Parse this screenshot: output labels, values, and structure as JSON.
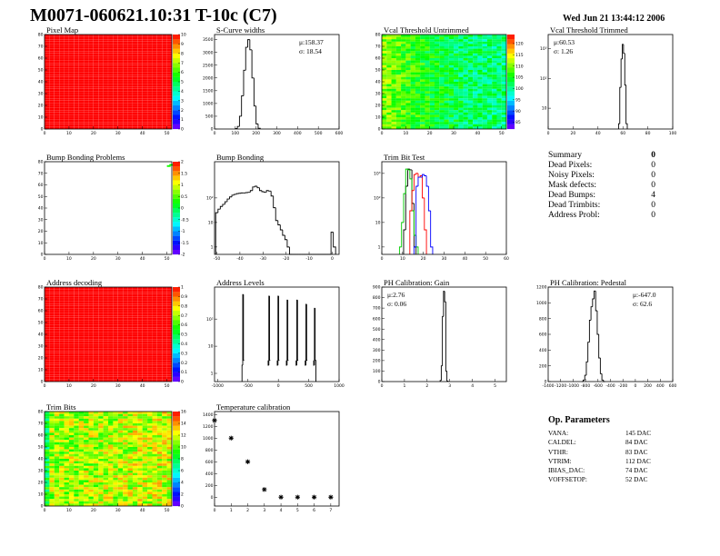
{
  "header": {
    "title": "M0071-060621.10:31 T-10c (C7)",
    "date": "Wed Jun 21 13:44:12 2006"
  },
  "summary": {
    "title": "Summary",
    "total": "0",
    "rows": [
      {
        "label": "Dead Pixels:",
        "value": "0"
      },
      {
        "label": "Noisy Pixels:",
        "value": "0"
      },
      {
        "label": "Mask defects:",
        "value": "0"
      },
      {
        "label": "Dead Bumps:",
        "value": "4"
      },
      {
        "label": "Dead Trimbits:",
        "value": "0"
      },
      {
        "label": "Address Probl:",
        "value": "0"
      }
    ]
  },
  "op_parameters": {
    "title": "Op. Parameters",
    "rows": [
      {
        "label": "VANA:",
        "value": "145 DAC"
      },
      {
        "label": "CALDEL:",
        "value": "84 DAC"
      },
      {
        "label": "VTHR:",
        "value": "83 DAC"
      },
      {
        "label": "VTRIM:",
        "value": "112 DAC"
      },
      {
        "label": "IBIAS_DAC:",
        "value": "74 DAC"
      },
      {
        "label": "VOFFSETOP:",
        "value": "52 DAC"
      }
    ]
  },
  "chart_data": [
    {
      "type": "heatmap",
      "title": "Pixel Map",
      "xlim": [
        0,
        52
      ],
      "ylim": [
        0,
        80
      ],
      "xticks": [
        0,
        10,
        20,
        30,
        40,
        50
      ],
      "yticks": [
        0,
        10,
        20,
        30,
        40,
        50,
        60,
        70,
        80
      ],
      "zlim": [
        0,
        10
      ],
      "zticks": [
        0,
        1,
        2,
        3,
        4,
        5,
        6,
        7,
        8,
        9,
        10
      ],
      "z_uniform": 10
    },
    {
      "type": "histogram",
      "title": "S-Curve widths",
      "xlim": [
        0,
        600
      ],
      "ylim": [
        0,
        3700
      ],
      "xticks": [
        0,
        100,
        200,
        300,
        400,
        500,
        600
      ],
      "yticks": [
        0,
        500,
        1000,
        1500,
        2000,
        2500,
        3000,
        3500
      ],
      "stats": {
        "mean": "μ:158.37",
        "sigma": "σ: 18.54"
      },
      "series": [
        {
          "color": "#000000",
          "bin_width": 10,
          "x": [
            105,
            115,
            125,
            135,
            145,
            155,
            165,
            175,
            185,
            195,
            205,
            215
          ],
          "y": [
            20,
            100,
            500,
            1300,
            2300,
            3200,
            3500,
            3100,
            2000,
            900,
            200,
            30
          ]
        }
      ]
    },
    {
      "type": "heatmap",
      "title": "Vcal Threshold Untrimmed",
      "xlim": [
        0,
        52
      ],
      "ylim": [
        0,
        80
      ],
      "xticks": [
        0,
        10,
        20,
        30,
        40,
        50
      ],
      "yticks": [
        0,
        10,
        20,
        30,
        40,
        50,
        60,
        70,
        80
      ],
      "zlim": [
        82,
        124
      ],
      "zticks": [
        85,
        90,
        95,
        100,
        105,
        110,
        115,
        120
      ],
      "z_mean": 103
    },
    {
      "type": "histogram",
      "title": "Vcal Threshold Trimmed",
      "xlim": [
        0,
        100
      ],
      "ylim": [
        2,
        3000
      ],
      "ylog": true,
      "xticks": [
        0,
        20,
        40,
        60,
        80,
        100
      ],
      "yticks": [
        10,
        100,
        1000
      ],
      "ytick_labels": [
        "10",
        "10²",
        "10³"
      ],
      "stats": {
        "mean": "μ:60.53",
        "sigma": "σ: 1.26"
      },
      "series": [
        {
          "color": "#000000",
          "bin_width": 1,
          "x": [
            57,
            58,
            59,
            60,
            61,
            62,
            63
          ],
          "y": [
            3,
            50,
            450,
            1400,
            700,
            60,
            3
          ]
        }
      ]
    },
    {
      "type": "heatmap",
      "title": "Bump Bonding Problems",
      "xlim": [
        0,
        52
      ],
      "ylim": [
        0,
        80
      ],
      "xticks": [
        0,
        10,
        20,
        30,
        40,
        50
      ],
      "yticks": [
        0,
        10,
        20,
        30,
        40,
        50,
        60,
        70,
        80
      ],
      "zlim": [
        -2,
        2
      ],
      "zticks": [
        -2,
        -1.5,
        -1,
        -0.5,
        0,
        0.5,
        1,
        1.5,
        2
      ],
      "hot_cells": [
        {
          "x": 51,
          "y": 77,
          "z": 0.2
        },
        {
          "x": 50,
          "y": 76,
          "z": 0.3
        }
      ]
    },
    {
      "type": "histogram",
      "title": "Bump Bonding",
      "xlim": [
        -51,
        3
      ],
      "ylim": [
        0.5,
        3000
      ],
      "ylog": true,
      "xticks": [
        -50,
        -40,
        -30,
        -20,
        -10,
        0
      ],
      "yticks": [
        1,
        10,
        100
      ],
      "ytick_labels": [
        "1",
        "10",
        "10²"
      ],
      "series": [
        {
          "color": "#000000",
          "bin_width": 1,
          "x": [
            -50,
            -49,
            -48,
            -47,
            -46,
            -45,
            -44,
            -43,
            -42,
            -41,
            -40,
            -39,
            -38,
            -37,
            -36,
            -35,
            -34,
            -33,
            -32,
            -31,
            -30,
            -29,
            -28,
            -27,
            -26,
            -25,
            -24,
            -23,
            -22,
            -21,
            -20,
            -19,
            -18,
            -17,
            -16,
            -15,
            -14,
            -13,
            -12,
            -11,
            -10,
            -9,
            -8,
            -7,
            -6,
            -5,
            -4,
            -3,
            -2,
            -1,
            0,
            1
          ],
          "y": [
            25,
            35,
            45,
            55,
            70,
            90,
            110,
            130,
            140,
            150,
            155,
            160,
            160,
            165,
            170,
            200,
            280,
            300,
            260,
            200,
            180,
            170,
            200,
            190,
            120,
            40,
            12,
            8,
            5,
            3,
            2,
            1,
            0,
            0,
            0,
            0,
            0,
            0,
            0,
            0,
            0,
            0,
            0,
            0,
            0,
            0,
            0,
            0,
            0,
            0,
            4,
            1
          ]
        }
      ]
    },
    {
      "type": "histogram",
      "title": "Trim Bit Test",
      "xlim": [
        0,
        60
      ],
      "ylim": [
        0.5,
        3000
      ],
      "ylog": true,
      "xticks": [
        0,
        10,
        20,
        30,
        40,
        50,
        60
      ],
      "yticks": [
        1,
        10,
        100,
        1000
      ],
      "ytick_labels": [
        "1",
        "10",
        "10²",
        "10³"
      ],
      "series": [
        {
          "color": "#000000",
          "bin_width": 1,
          "x": [
            11,
            12,
            13,
            14,
            15,
            16
          ],
          "y": [
            5,
            300,
            1500,
            1400,
            60,
            1
          ]
        },
        {
          "color": "#00cc00",
          "bin_width": 1,
          "x": [
            9,
            10,
            11,
            12,
            13,
            14,
            15,
            16,
            17
          ],
          "y": [
            1,
            10,
            150,
            1500,
            1400,
            600,
            30,
            3,
            1
          ]
        },
        {
          "color": "#ff0000",
          "bin_width": 1,
          "x": [
            14,
            15,
            16,
            17,
            18,
            19,
            20,
            21
          ],
          "y": [
            30,
            200,
            900,
            1000,
            700,
            800,
            100,
            5
          ]
        },
        {
          "color": "#0000ff",
          "bin_width": 1,
          "x": [
            16,
            17,
            18,
            19,
            20,
            21,
            22,
            23,
            24
          ],
          "y": [
            1,
            300,
            700,
            700,
            900,
            800,
            300,
            30,
            1
          ]
        }
      ]
    },
    {
      "type": "heatmap",
      "title": "Address decoding",
      "xlim": [
        0,
        52
      ],
      "ylim": [
        0,
        80
      ],
      "xticks": [
        0,
        10,
        20,
        30,
        40,
        50
      ],
      "yticks": [
        0,
        10,
        20,
        30,
        40,
        50,
        60,
        70,
        80
      ],
      "zlim": [
        0,
        1
      ],
      "zticks": [
        0,
        0.1,
        0.2,
        0.3,
        0.4,
        0.5,
        0.6,
        0.7,
        0.8,
        0.9,
        1
      ],
      "z_uniform": 1
    },
    {
      "type": "histogram",
      "title": "Address Levels",
      "xlim": [
        -1050,
        1000
      ],
      "ylim": [
        0.5,
        1500
      ],
      "ylog": true,
      "xticks": [
        -1000,
        -500,
        0,
        500,
        1000
      ],
      "yticks": [
        1,
        10,
        100
      ],
      "ytick_labels": [
        "1",
        "10",
        "10²"
      ],
      "series": [
        {
          "color": "#000000",
          "bin_width": 12,
          "x": [
            -592,
            -580,
            -568,
            -162,
            -150,
            -138,
            -12,
            0,
            12,
            138,
            150,
            162,
            298,
            310,
            322,
            448,
            460,
            472,
            588,
            600,
            612
          ],
          "y": [
            2,
            800,
            3,
            2,
            700,
            3,
            2,
            700,
            3,
            2,
            500,
            3,
            2,
            500,
            3,
            2,
            350,
            3,
            2,
            250,
            3
          ]
        }
      ]
    },
    {
      "type": "histogram",
      "title": "PH Calibration: Gain",
      "xlim": [
        0,
        5.5
      ],
      "ylim": [
        0,
        900
      ],
      "xticks": [
        0,
        1,
        2,
        3,
        4,
        5
      ],
      "yticks": [
        0,
        100,
        200,
        300,
        400,
        500,
        600,
        700,
        800,
        900
      ],
      "stats": {
        "mean": "μ:2.76",
        "sigma": "σ: 0.06"
      },
      "series": [
        {
          "color": "#000000",
          "bin_width": 0.05,
          "x": [
            2.6,
            2.65,
            2.7,
            2.75,
            2.8,
            2.85,
            2.9
          ],
          "y": [
            10,
            150,
            620,
            860,
            760,
            100,
            5
          ]
        }
      ]
    },
    {
      "type": "histogram",
      "title": "PH Calibration: Pedestal",
      "xlim": [
        -1400,
        600
      ],
      "ylim": [
        0,
        1200
      ],
      "xticks": [
        -1400,
        -1200,
        -1000,
        -800,
        -600,
        -400,
        -200,
        0,
        200,
        400,
        600
      ],
      "yticks": [
        0,
        200,
        400,
        600,
        800,
        1000,
        1200
      ],
      "stats": {
        "mean": "μ:-647.0",
        "sigma": "σ: 62.6"
      },
      "series": [
        {
          "color": "#000000",
          "bin_width": 25,
          "x": [
            -850,
            -825,
            -800,
            -775,
            -750,
            -725,
            -700,
            -675,
            -650,
            -625,
            -600,
            -575,
            -550,
            -525,
            -500
          ],
          "y": [
            0,
            20,
            80,
            250,
            500,
            780,
            950,
            1050,
            1150,
            900,
            600,
            300,
            100,
            20,
            0
          ]
        }
      ]
    },
    {
      "type": "heatmap",
      "title": "Trim Bits",
      "xlim": [
        0,
        52
      ],
      "ylim": [
        0,
        80
      ],
      "xticks": [
        0,
        10,
        20,
        30,
        40,
        50
      ],
      "yticks": [
        0,
        10,
        20,
        30,
        40,
        50,
        60,
        70,
        80
      ],
      "zlim": [
        0,
        16
      ],
      "zticks": [
        0,
        2,
        4,
        6,
        8,
        10,
        12,
        14,
        16
      ],
      "z_mean": 11
    },
    {
      "type": "scatter",
      "title": "Temperature calibration",
      "xlim": [
        0,
        7.5
      ],
      "ylim": [
        -150,
        1450
      ],
      "xticks": [
        0,
        1,
        2,
        3,
        4,
        5,
        6,
        7
      ],
      "yticks": [
        0,
        200,
        400,
        600,
        800,
        1000,
        1200,
        1400
      ],
      "marker": "star",
      "x": [
        0,
        1,
        2,
        3,
        4,
        5,
        6,
        7
      ],
      "y": [
        1300,
        1000,
        600,
        130,
        0,
        0,
        0,
        0
      ]
    }
  ]
}
